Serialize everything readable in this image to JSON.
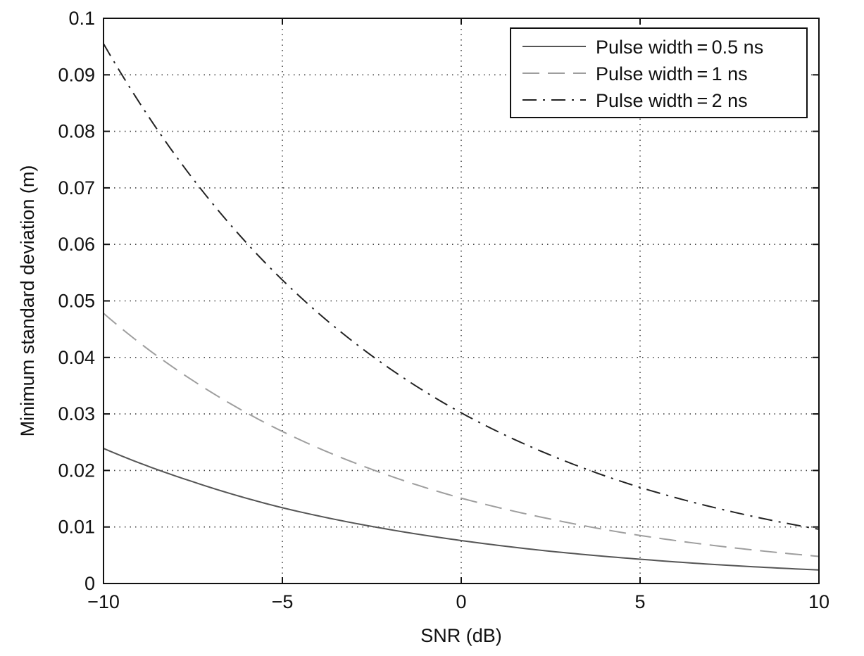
{
  "chart_data": {
    "type": "line",
    "title": "",
    "xlabel": "SNR (dB)",
    "ylabel": "Minimum standard deviation (m)",
    "xlim": [
      -10,
      10
    ],
    "ylim": [
      0,
      0.1
    ],
    "xticks": [
      -10,
      -5,
      0,
      5,
      10
    ],
    "xtick_labels": [
      "−10",
      "−5",
      "0",
      "5",
      "10"
    ],
    "yticks": [
      0,
      0.01,
      0.02,
      0.03,
      0.04,
      0.05,
      0.06,
      0.07,
      0.08,
      0.09,
      0.1
    ],
    "ytick_labels": [
      "0",
      "0.01",
      "0.02",
      "0.03",
      "0.04",
      "0.05",
      "0.06",
      "0.07",
      "0.08",
      "0.09",
      "0.1"
    ],
    "grid": true,
    "legend_position": "top-right",
    "x": [
      -10,
      -7.5,
      -5,
      -2.5,
      0,
      2.5,
      5,
      7.5,
      10
    ],
    "series": [
      {
        "name": "Pulse width = 0.5 ns",
        "style": "solid",
        "color": "#555555",
        "values": [
          0.0239,
          0.018,
          0.0134,
          0.0101,
          0.0076,
          0.0057,
          0.0043,
          0.0032,
          0.0024
        ]
      },
      {
        "name": "Pulse width = 1 ns",
        "style": "dashed",
        "color": "#9e9e9e",
        "values": [
          0.0478,
          0.0359,
          0.0269,
          0.0202,
          0.0151,
          0.0114,
          0.0085,
          0.0064,
          0.0048
        ]
      },
      {
        "name": "Pulse width = 2 ns",
        "style": "dashdot",
        "color": "#222222",
        "values": [
          0.0955,
          0.0716,
          0.0537,
          0.0403,
          0.0302,
          0.0227,
          0.017,
          0.0128,
          0.0096
        ]
      }
    ]
  }
}
